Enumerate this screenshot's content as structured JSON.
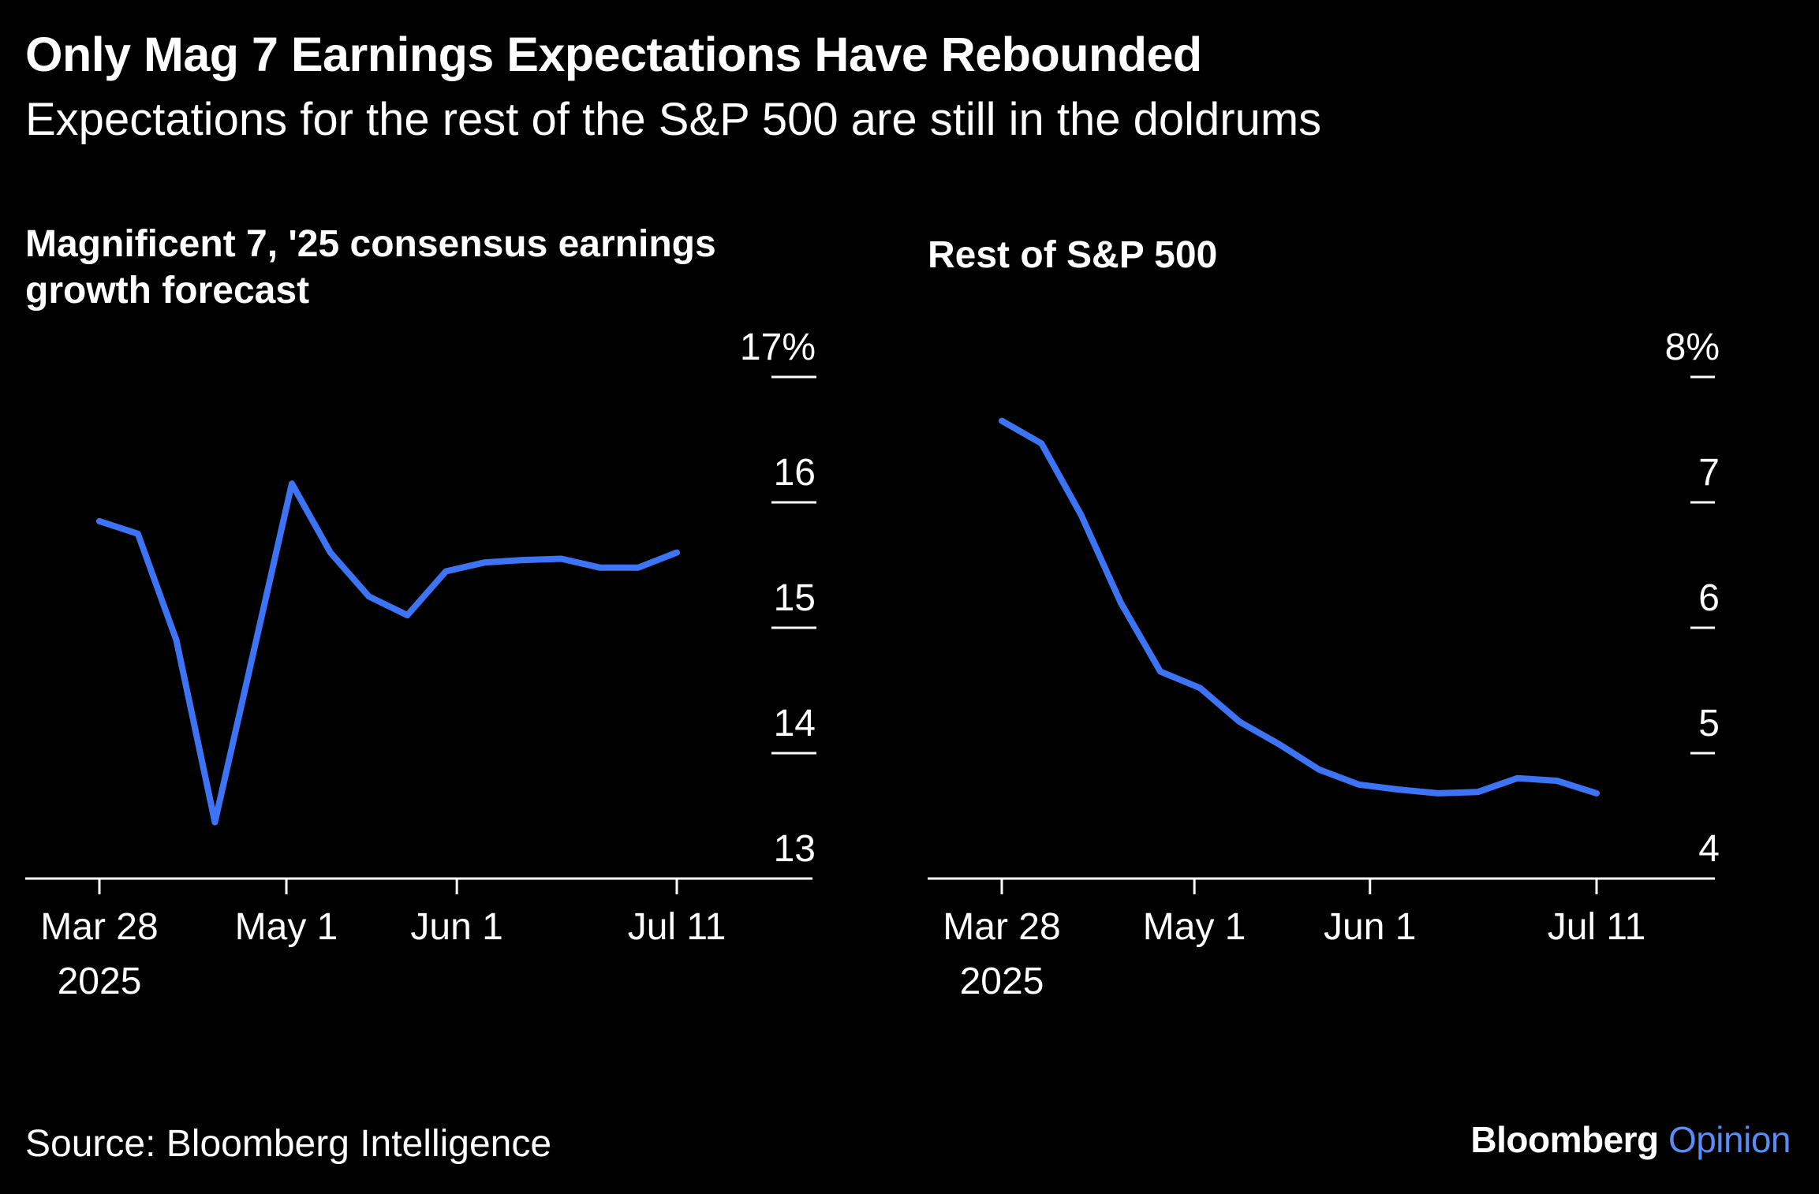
{
  "header": {
    "title": "Only Mag 7 Earnings Expectations Have Rebounded",
    "subtitle": "Expectations for the rest of the S&P 500 are still in the doldrums"
  },
  "footer": {
    "source": "Source: Bloomberg Intelligence",
    "brand_main": "Bloomberg",
    "brand_accent": "Opinion"
  },
  "colors": {
    "background": "#000000",
    "line": "#3c74f5",
    "axis": "#ffffff",
    "accent": "#5b8cf5"
  },
  "chart_data": [
    {
      "type": "line",
      "title": "Magnificent 7, '25 consensus earnings growth forecast",
      "ylim": [
        13,
        17
      ],
      "yticks": [
        "17%",
        "16",
        "15",
        "14",
        "13"
      ],
      "x_range": [
        "2025-03-28",
        "2025-07-11"
      ],
      "xticks": [
        {
          "date": "2025-03-28",
          "label": "Mar 28",
          "sublabel": "2025"
        },
        {
          "date": "2025-05-01",
          "label": "May 1",
          "sublabel": ""
        },
        {
          "date": "2025-06-01",
          "label": "Jun 1",
          "sublabel": ""
        },
        {
          "date": "2025-07-11",
          "label": "Jul 11",
          "sublabel": ""
        }
      ],
      "grid": false,
      "y_axis_side": "right",
      "series": [
        {
          "x": [
            "2025-03-28",
            "2025-04-04",
            "2025-04-11",
            "2025-04-18",
            "2025-04-25",
            "2025-05-02",
            "2025-05-09",
            "2025-05-16",
            "2025-05-23",
            "2025-05-30",
            "2025-06-06",
            "2025-06-13",
            "2025-06-20",
            "2025-06-27",
            "2025-07-04",
            "2025-07-11"
          ],
          "y": [
            15.85,
            15.75,
            14.9,
            13.45,
            14.8,
            16.15,
            15.6,
            15.25,
            15.1,
            15.45,
            15.52,
            15.54,
            15.55,
            15.48,
            15.48,
            15.6
          ]
        }
      ]
    },
    {
      "type": "line",
      "title": "Rest of S&P 500",
      "ylim": [
        4,
        8
      ],
      "yticks": [
        "8%",
        "7",
        "6",
        "5",
        "4"
      ],
      "x_range": [
        "2025-03-28",
        "2025-07-11"
      ],
      "xticks": [
        {
          "date": "2025-03-28",
          "label": "Mar 28",
          "sublabel": "2025"
        },
        {
          "date": "2025-05-01",
          "label": "May 1",
          "sublabel": ""
        },
        {
          "date": "2025-06-01",
          "label": "Jun 1",
          "sublabel": ""
        },
        {
          "date": "2025-07-11",
          "label": "Jul 11",
          "sublabel": ""
        }
      ],
      "grid": false,
      "y_axis_side": "right",
      "series": [
        {
          "x": [
            "2025-03-28",
            "2025-04-04",
            "2025-04-11",
            "2025-04-18",
            "2025-04-25",
            "2025-05-02",
            "2025-05-09",
            "2025-05-16",
            "2025-05-23",
            "2025-05-30",
            "2025-06-06",
            "2025-06-13",
            "2025-06-20",
            "2025-06-27",
            "2025-07-04",
            "2025-07-11"
          ],
          "y": [
            7.65,
            7.47,
            6.9,
            6.2,
            5.65,
            5.52,
            5.25,
            5.07,
            4.87,
            4.75,
            4.71,
            4.68,
            4.69,
            4.8,
            4.78,
            4.68
          ]
        }
      ]
    }
  ]
}
